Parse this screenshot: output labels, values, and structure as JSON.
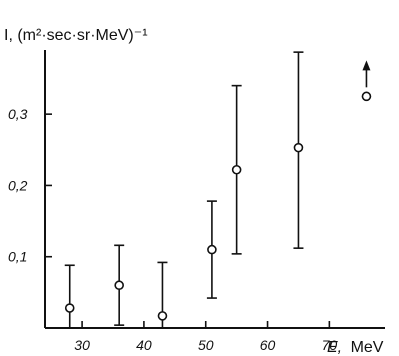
{
  "chart_data": {
    "type": "scatter",
    "title": "",
    "ylabel": "I, (m²·sec·sr·MeV)⁻¹",
    "xlabel_var": "E,",
    "xlabel_unit": "MeV",
    "xlim": [
      24,
      79
    ],
    "ylim": [
      0,
      0.39
    ],
    "x_ticks": [
      30,
      40,
      50,
      60,
      70
    ],
    "x_tick_labels": [
      "30",
      "40",
      "50",
      "60",
      "70"
    ],
    "y_ticks": [
      0.1,
      0.2,
      0.3
    ],
    "y_tick_labels": [
      "0,1",
      "0,2",
      "0,3"
    ],
    "grid": false,
    "legend": "none",
    "points": [
      {
        "x": 28,
        "y": 0.028,
        "y_low": 0,
        "y_high": 0.088
      },
      {
        "x": 36,
        "y": 0.06,
        "y_low": 0.004,
        "y_high": 0.116
      },
      {
        "x": 43,
        "y": 0.017,
        "y_low": 0,
        "y_high": 0.092
      },
      {
        "x": 51,
        "y": 0.11,
        "y_low": 0.042,
        "y_high": 0.178
      },
      {
        "x": 55,
        "y": 0.222,
        "y_low": 0.104,
        "y_high": 0.34
      },
      {
        "x": 65,
        "y": 0.253,
        "y_low": 0.112,
        "y_high": 0.387
      }
    ],
    "lower_limit_points": [
      {
        "x": 76,
        "y": 0.325
      }
    ]
  }
}
